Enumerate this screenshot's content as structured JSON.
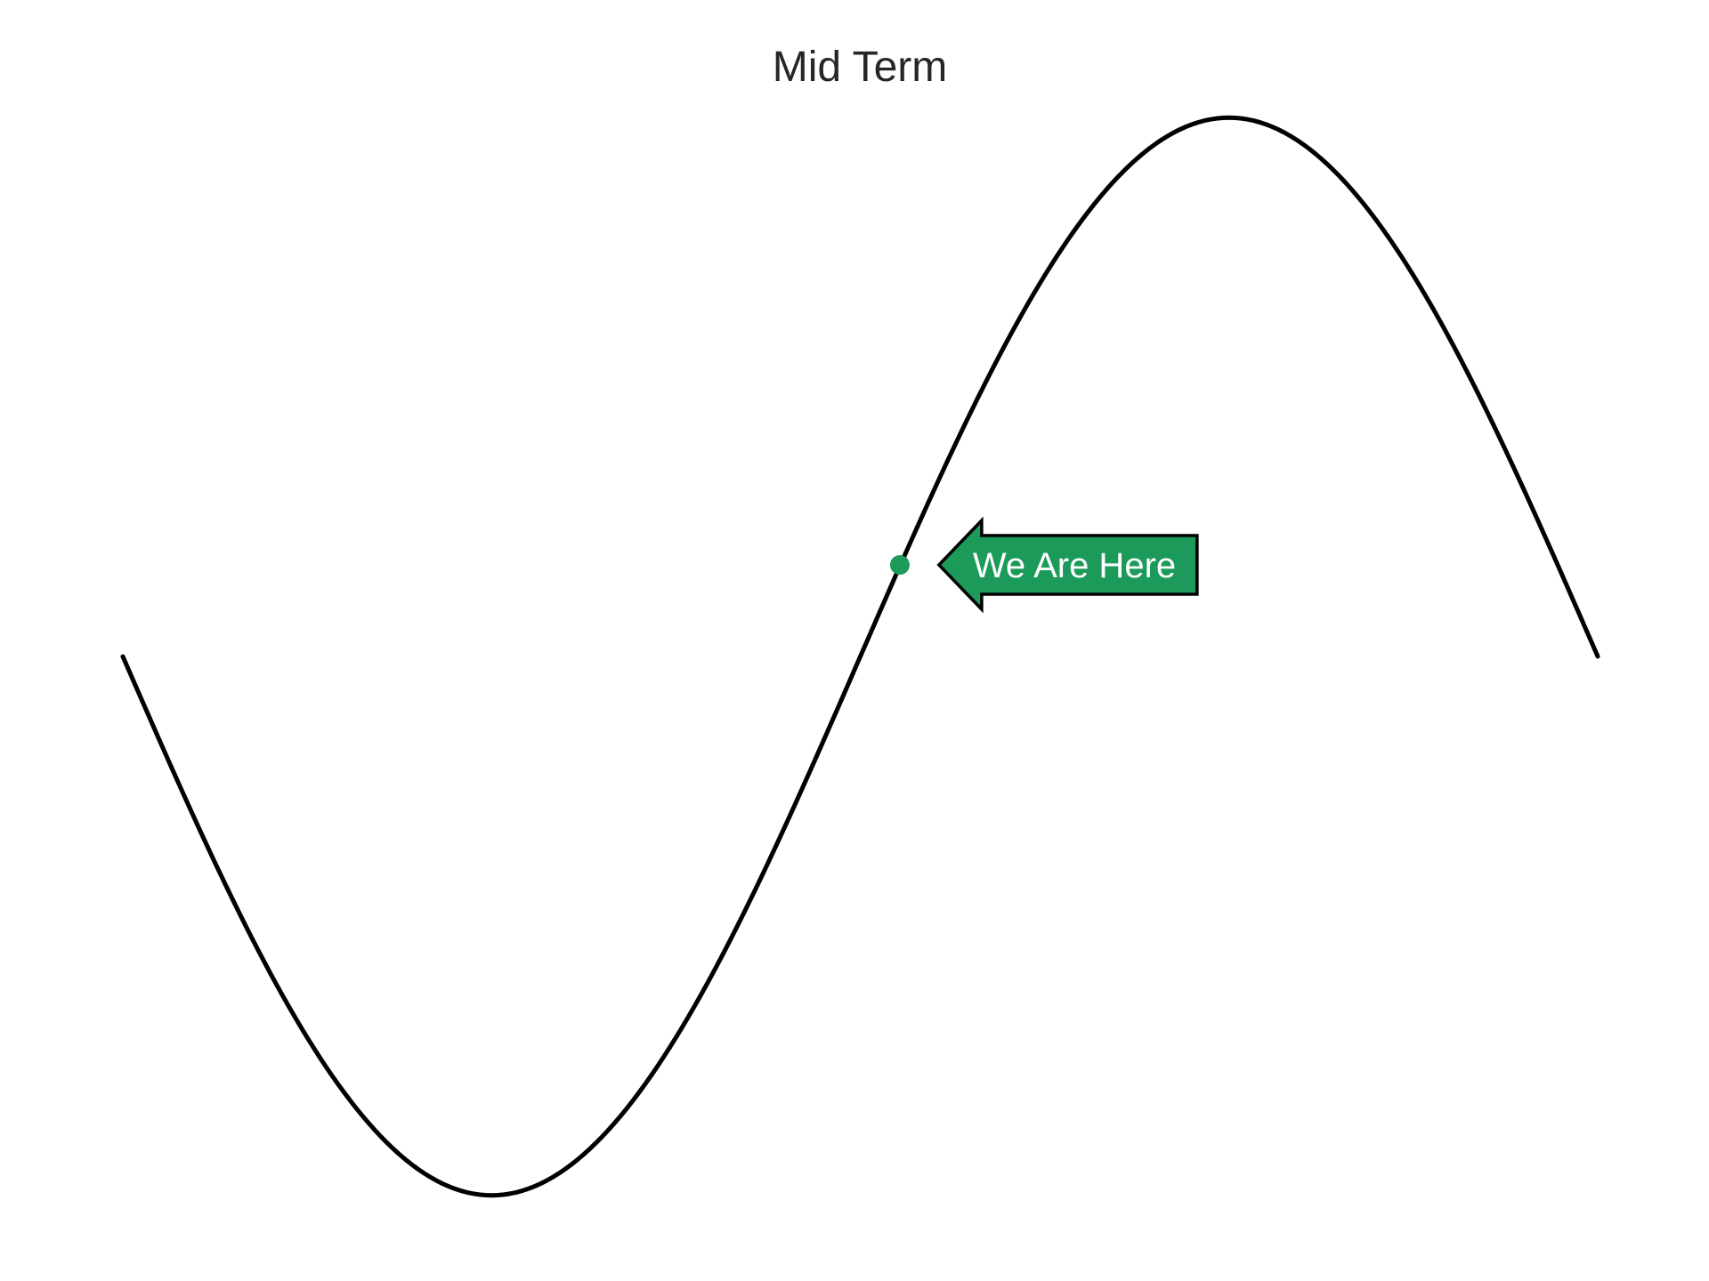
{
  "chart_data": {
    "type": "line",
    "title": "Mid Term",
    "xlabel": "",
    "ylabel": "",
    "xlim": [
      0,
      6.283
    ],
    "ylim": [
      -1.05,
      1.05
    ],
    "grid": false,
    "axes_visible": false,
    "series": [
      {
        "function": "-sin(x)",
        "x_start": 0,
        "x_end": 6.283,
        "samples": 240,
        "color": "#000000"
      }
    ],
    "annotation": {
      "text": "We Are Here",
      "point": {
        "x": 3.31,
        "y": 0.17
      },
      "marker_color": "#1b9a5a",
      "box_color": "#1b9a5a",
      "text_color": "#ffffff",
      "border_color": "#000000",
      "arrow_direction": "left"
    }
  }
}
